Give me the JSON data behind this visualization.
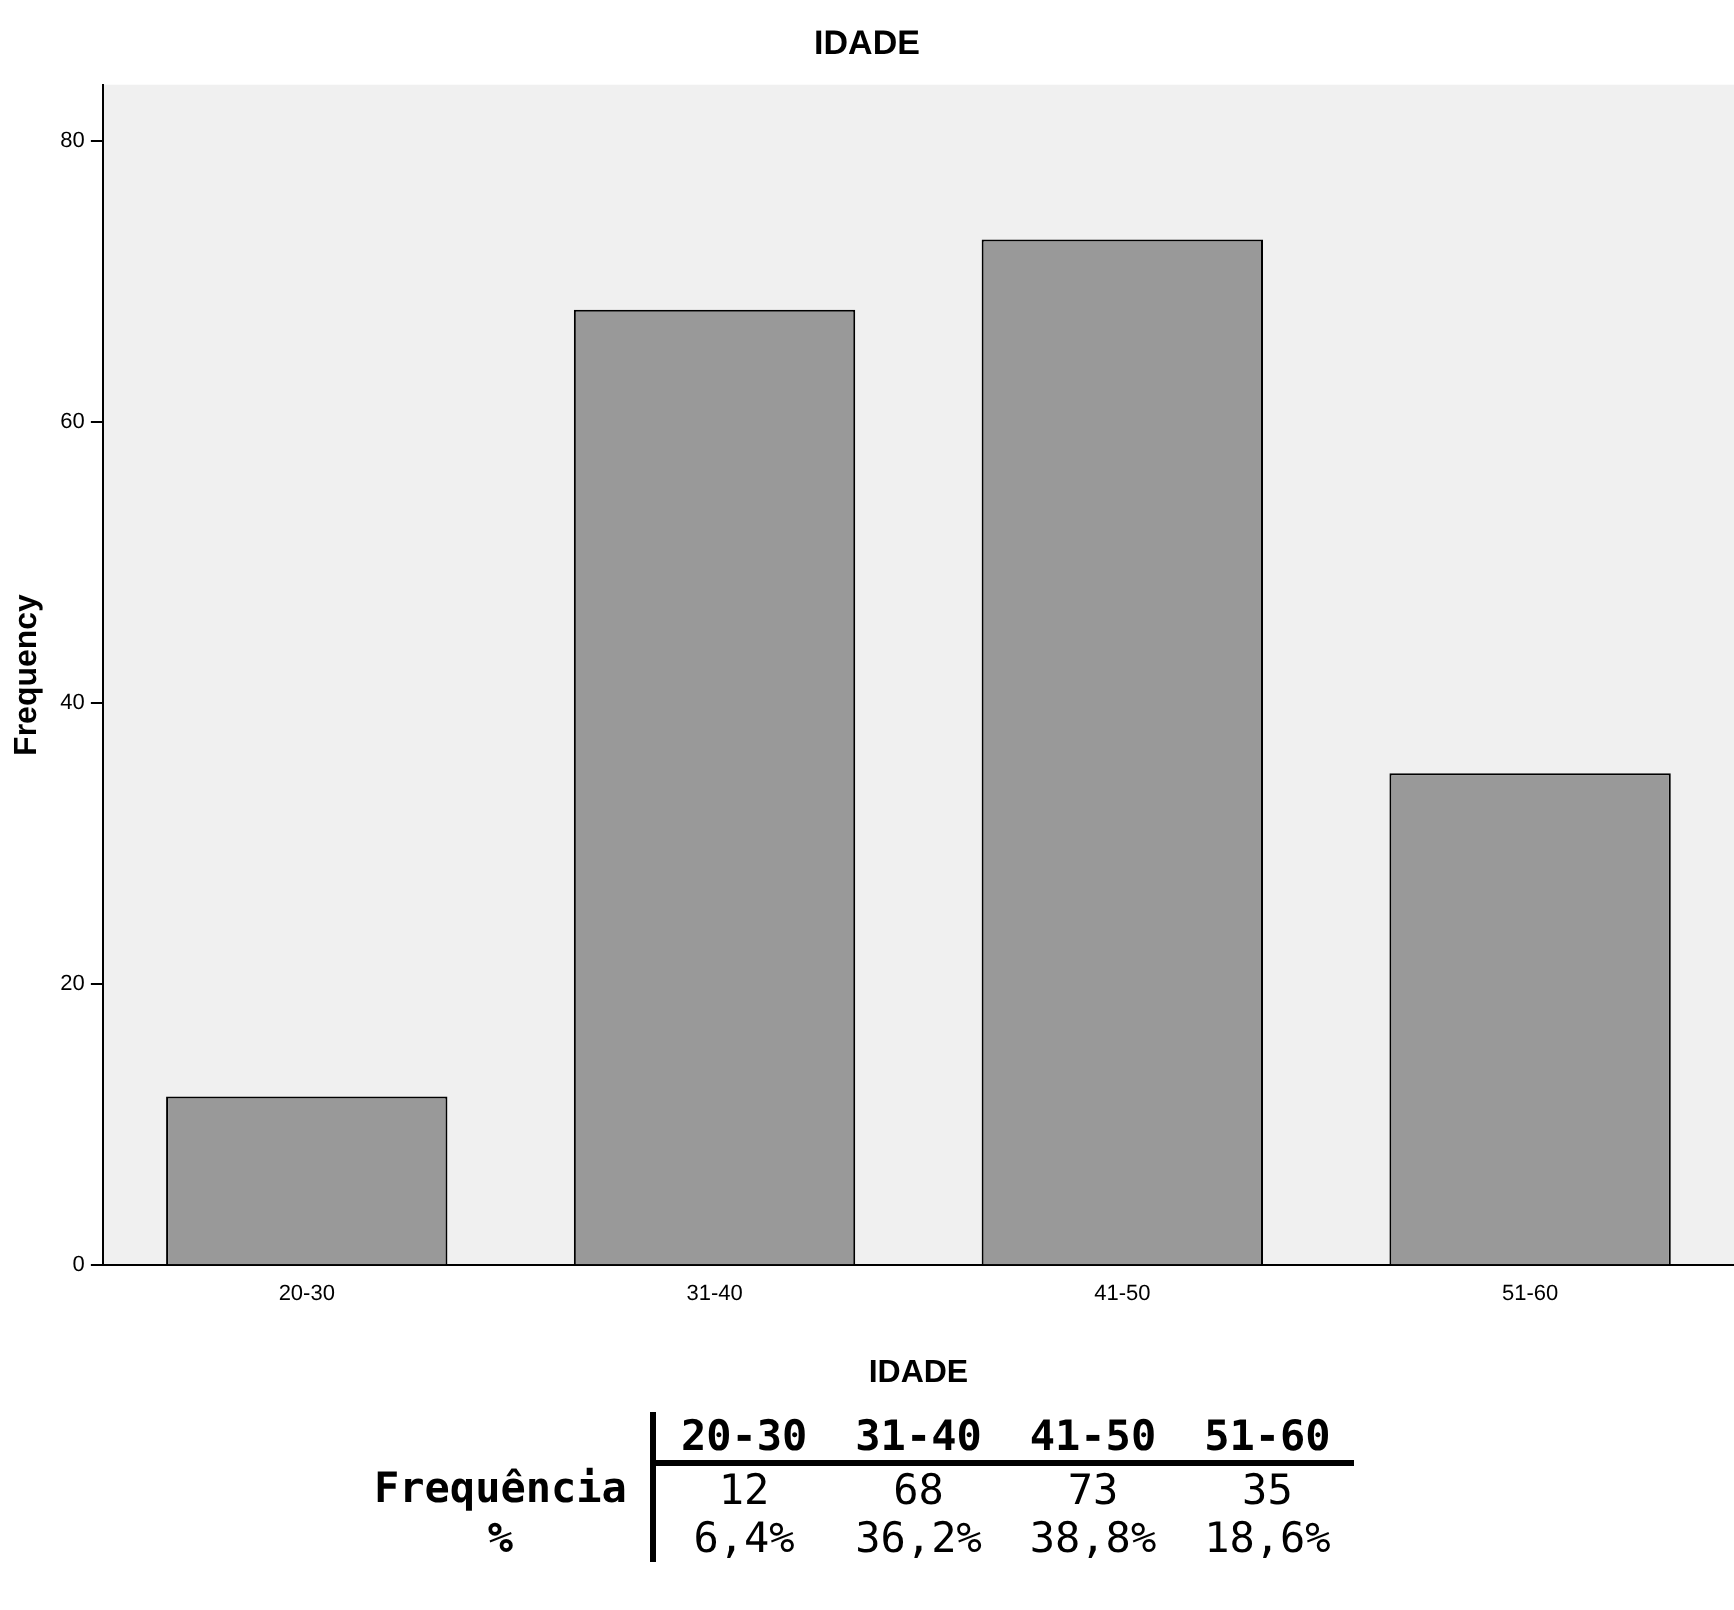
{
  "chart_data": {
    "type": "bar",
    "title": "IDADE",
    "xlabel": "IDADE",
    "ylabel": "Frequency",
    "categories": [
      "20-30",
      "31-40",
      "41-50",
      "51-60"
    ],
    "values": [
      12,
      68,
      73,
      35
    ],
    "color": "#999999",
    "ylim": [
      0,
      84
    ],
    "yticks": [
      0,
      20,
      40,
      60,
      80
    ],
    "grid": false,
    "legend": false,
    "annotations": [
      "Frequência",
      "12",
      "68",
      "73",
      "35",
      "%",
      "6,4%",
      "36,2%",
      "38,8%",
      "18,6%"
    ]
  }
}
